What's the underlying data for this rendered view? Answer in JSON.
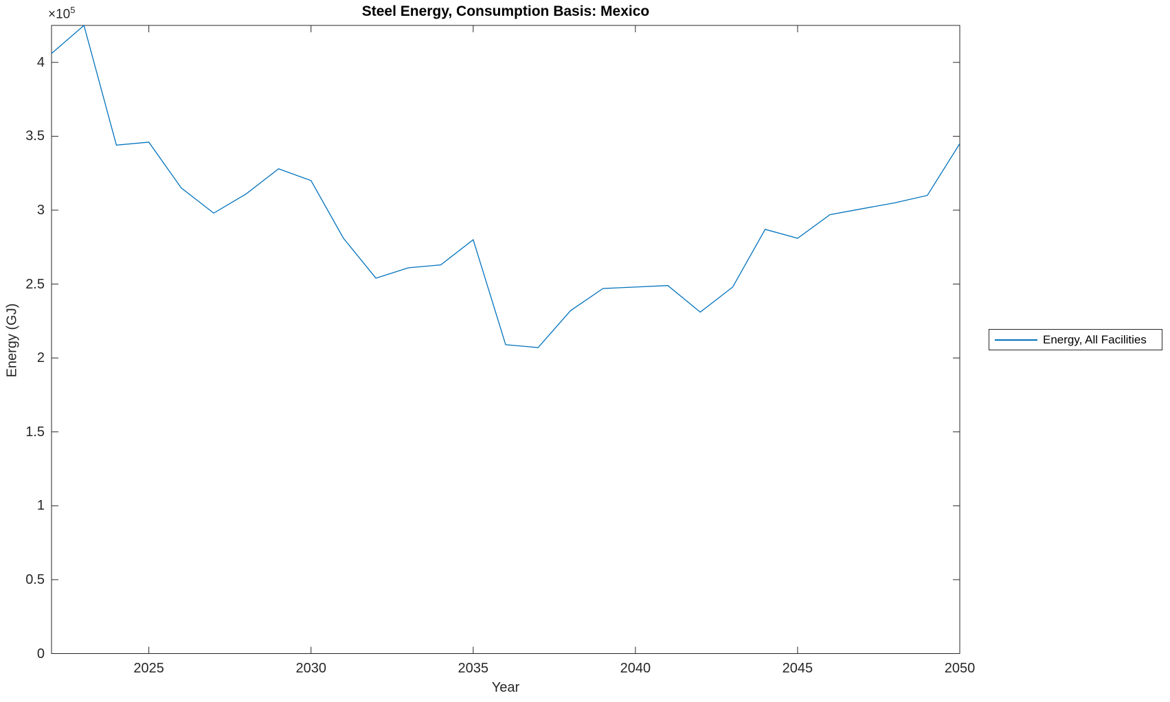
{
  "chart_data": {
    "type": "line",
    "title": "Steel Energy, Consumption Basis: Mexico",
    "xlabel": "Year",
    "ylabel": "Energy (GJ)",
    "y_axis_multiplier": {
      "base": "×10",
      "exponent": "5"
    },
    "xlim": [
      2022,
      2050
    ],
    "ylim": [
      0,
      425000
    ],
    "xticks": [
      2025,
      2030,
      2035,
      2040,
      2045,
      2050
    ],
    "xtick_labels": [
      "2025",
      "2030",
      "2035",
      "2040",
      "2045",
      "2050"
    ],
    "yticks": [
      0,
      50000,
      100000,
      150000,
      200000,
      250000,
      300000,
      350000,
      400000
    ],
    "ytick_labels": [
      "0",
      "0.5",
      "1",
      "1.5",
      "2",
      "2.5",
      "3",
      "3.5",
      "4"
    ],
    "grid": false,
    "legend": {
      "position": "right-outside",
      "entries": [
        {
          "label": "Energy, All Facilities",
          "color": "#0072BD"
        }
      ]
    },
    "series": [
      {
        "name": "Energy, All Facilities",
        "color": "#0072BD",
        "x": [
          2022,
          2023,
          2024,
          2025,
          2026,
          2027,
          2028,
          2029,
          2030,
          2031,
          2032,
          2033,
          2034,
          2035,
          2036,
          2037,
          2038,
          2039,
          2040,
          2041,
          2042,
          2043,
          2044,
          2045,
          2046,
          2047,
          2048,
          2049,
          2050
        ],
        "values": [
          406000,
          425000,
          344000,
          346000,
          315000,
          298000,
          311000,
          328000,
          320000,
          281000,
          254000,
          261000,
          263000,
          280000,
          209000,
          207000,
          232000,
          247000,
          248000,
          249000,
          231000,
          248000,
          287000,
          281000,
          297000,
          301000,
          305000,
          310000,
          345000
        ]
      }
    ]
  },
  "colors": {
    "line": "#0072BD",
    "axis": "#262626",
    "tick_text": "#262626",
    "title_text": "#000000",
    "background": "#ffffff"
  }
}
